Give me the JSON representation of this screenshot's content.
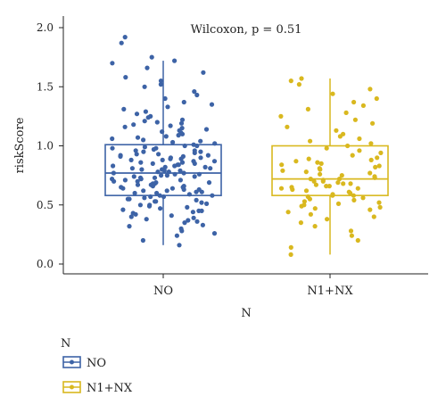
{
  "chart_data": {
    "type": "box",
    "title": "",
    "annotation": "Wilcoxon, p = 0.51",
    "xlabel": "N",
    "ylabel": "riskScore",
    "ylim": [
      -0.05,
      2.05
    ],
    "yticks": [
      "0.0",
      "0.5",
      "1.0",
      "1.5",
      "2.0"
    ],
    "categories": [
      "NO",
      "N1+NX"
    ],
    "grid": false,
    "legend": {
      "title": "N",
      "position": "bottom-left",
      "entries": [
        "NO",
        "N1+NX"
      ]
    },
    "colors": {
      "NO": "#3d63a6",
      "N1+NX": "#d9b81f"
    },
    "boxes": [
      {
        "name": "NO",
        "min": 0.16,
        "q1": 0.58,
        "median": 0.77,
        "q3": 1.01,
        "max": 1.72
      },
      {
        "name": "N1+NX",
        "min": 0.08,
        "q1": 0.58,
        "median": 0.72,
        "q3": 1.0,
        "max": 1.57
      }
    ],
    "points": {
      "NO": [
        0.16,
        0.2,
        0.24,
        0.26,
        0.28,
        0.3,
        0.32,
        0.33,
        0.35,
        0.36,
        0.37,
        0.38,
        0.39,
        0.4,
        0.41,
        0.42,
        0.43,
        0.44,
        0.45,
        0.45,
        0.46,
        0.47,
        0.48,
        0.49,
        0.5,
        0.5,
        0.51,
        0.52,
        0.53,
        0.53,
        0.54,
        0.55,
        0.55,
        0.56,
        0.57,
        0.57,
        0.58,
        0.58,
        0.59,
        0.6,
        0.6,
        0.61,
        0.61,
        0.62,
        0.62,
        0.63,
        0.63,
        0.64,
        0.64,
        0.65,
        0.65,
        0.66,
        0.66,
        0.67,
        0.67,
        0.68,
        0.68,
        0.69,
        0.69,
        0.7,
        0.7,
        0.71,
        0.71,
        0.72,
        0.72,
        0.73,
        0.73,
        0.74,
        0.74,
        0.75,
        0.75,
        0.76,
        0.76,
        0.77,
        0.77,
        0.78,
        0.78,
        0.79,
        0.79,
        0.8,
        0.8,
        0.81,
        0.81,
        0.82,
        0.82,
        0.83,
        0.83,
        0.84,
        0.84,
        0.85,
        0.85,
        0.86,
        0.86,
        0.87,
        0.87,
        0.88,
        0.88,
        0.89,
        0.89,
        0.9,
        0.9,
        0.91,
        0.91,
        0.92,
        0.92,
        0.93,
        0.93,
        0.94,
        0.95,
        0.95,
        0.96,
        0.96,
        0.97,
        0.98,
        0.98,
        0.99,
        1.0,
        1.0,
        1.01,
        1.02,
        1.03,
        1.04,
        1.05,
        1.06,
        1.07,
        1.08,
        1.09,
        1.1,
        1.11,
        1.12,
        1.13,
        1.14,
        1.15,
        1.16,
        1.17,
        1.18,
        1.19,
        1.2,
        1.21,
        1.22,
        1.24,
        1.25,
        1.27,
        1.29,
        1.31,
        1.33,
        1.35,
        1.37,
        1.4,
        1.43,
        1.46,
        1.5,
        1.52,
        1.55,
        1.58,
        1.62,
        1.66,
        1.7,
        1.72,
        1.75,
        1.87,
        1.92
      ],
      "N1+NX": [
        0.08,
        0.14,
        0.2,
        0.24,
        0.28,
        0.32,
        0.35,
        0.38,
        0.4,
        0.42,
        0.44,
        0.46,
        0.47,
        0.48,
        0.49,
        0.5,
        0.51,
        0.52,
        0.53,
        0.54,
        0.55,
        0.56,
        0.57,
        0.58,
        0.58,
        0.59,
        0.6,
        0.61,
        0.62,
        0.63,
        0.64,
        0.64,
        0.65,
        0.66,
        0.66,
        0.67,
        0.68,
        0.68,
        0.69,
        0.7,
        0.7,
        0.71,
        0.72,
        0.72,
        0.73,
        0.74,
        0.75,
        0.76,
        0.77,
        0.78,
        0.79,
        0.8,
        0.81,
        0.82,
        0.83,
        0.84,
        0.85,
        0.86,
        0.87,
        0.88,
        0.89,
        0.9,
        0.92,
        0.94,
        0.96,
        0.98,
        1.0,
        1.02,
        1.04,
        1.06,
        1.08,
        1.1,
        1.13,
        1.16,
        1.19,
        1.22,
        1.25,
        1.28,
        1.31,
        1.34,
        1.37,
        1.4,
        1.44,
        1.48,
        1.52,
        1.55,
        1.57
      ]
    }
  }
}
